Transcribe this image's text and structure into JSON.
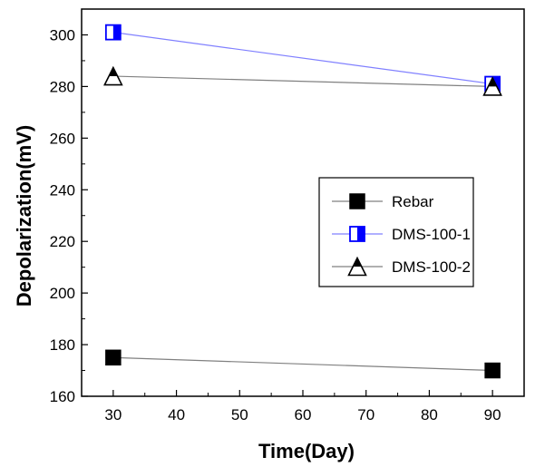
{
  "chart_data": {
    "type": "scatter",
    "xlabel": "Time(Day)",
    "ylabel": "Depolarization(mV)",
    "xlim": [
      25,
      95
    ],
    "ylim": [
      160,
      310
    ],
    "xticks": [
      30,
      40,
      50,
      60,
      70,
      80,
      90
    ],
    "yticks": [
      160,
      180,
      200,
      220,
      240,
      260,
      280,
      300
    ],
    "grid": false,
    "legend": "center-right",
    "series": [
      {
        "name": "Rebar",
        "marker": "square-filled",
        "line_color": "#808080",
        "marker_color": "#000000",
        "x": [
          30,
          90
        ],
        "y": [
          175,
          170
        ]
      },
      {
        "name": "DMS-100-1",
        "marker": "square-half",
        "line_color": "#8080ff",
        "marker_color": "#0000ff",
        "x": [
          30,
          90
        ],
        "y": [
          301,
          281
        ]
      },
      {
        "name": "DMS-100-2",
        "marker": "triangle-half",
        "line_color": "#808080",
        "marker_color": "#000000",
        "x": [
          30,
          90
        ],
        "y": [
          284,
          280
        ]
      }
    ]
  }
}
